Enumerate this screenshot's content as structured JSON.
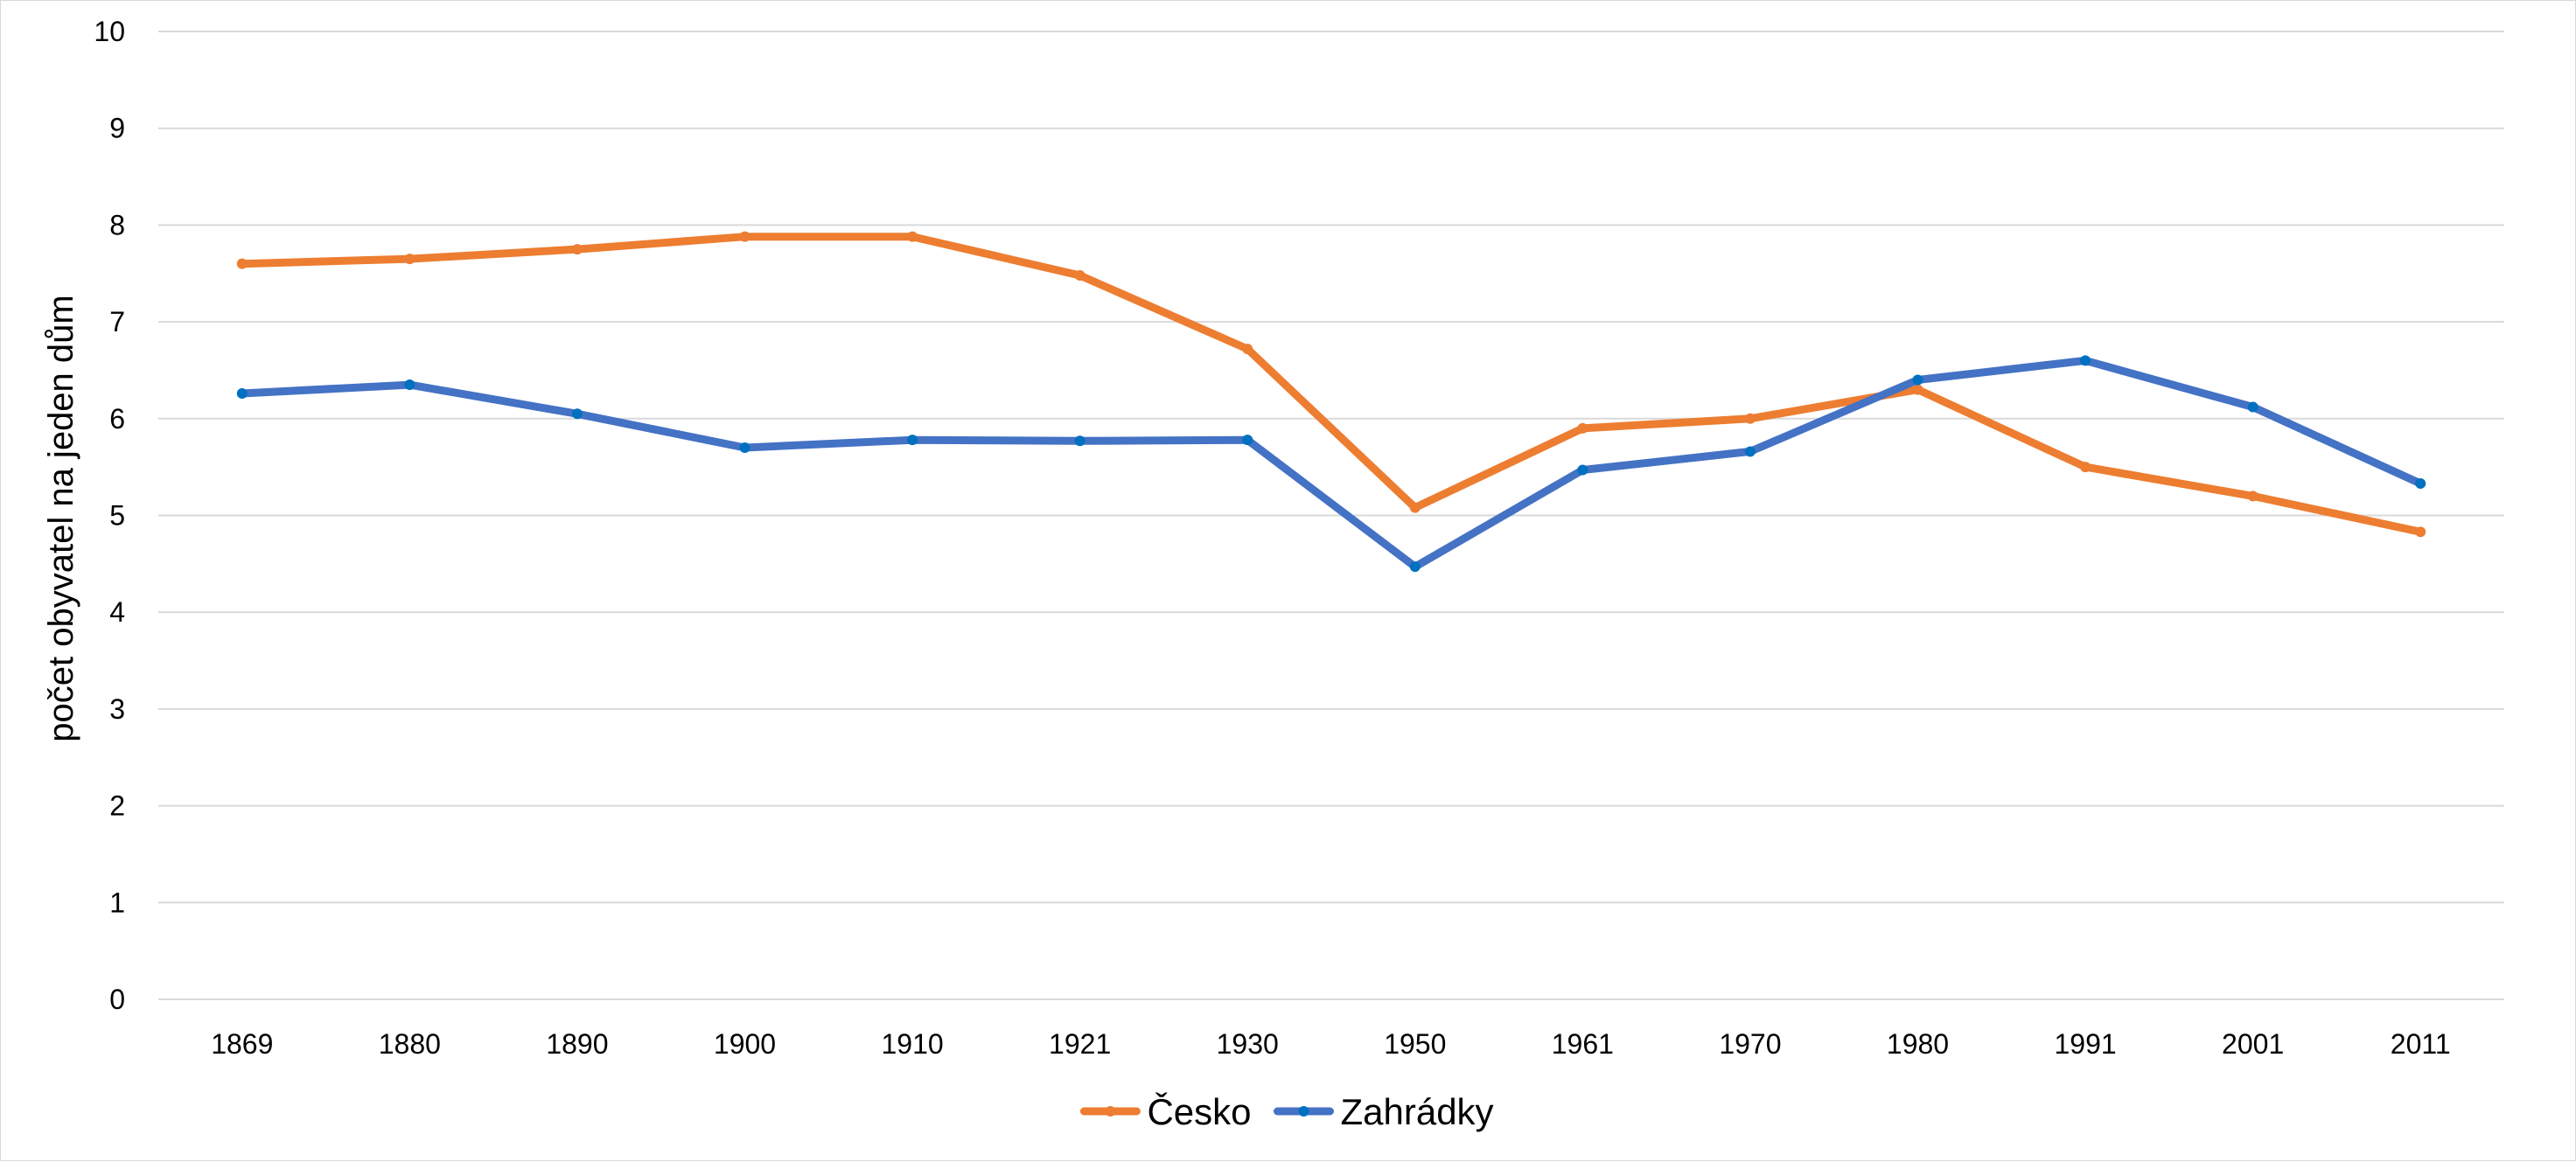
{
  "chart_data": {
    "type": "line",
    "title": "",
    "xlabel": "",
    "ylabel": "počet obyvatel na jeden dům",
    "categories": [
      "1869",
      "1880",
      "1890",
      "1900",
      "1910",
      "1921",
      "1930",
      "1950",
      "1961",
      "1970",
      "1980",
      "1991",
      "2001",
      "2011"
    ],
    "y_ticks": [
      "0",
      "1",
      "2",
      "3",
      "4",
      "5",
      "6",
      "7",
      "8",
      "9",
      "10"
    ],
    "ylim": [
      0,
      10
    ],
    "grid": true,
    "legend_position": "bottom",
    "series": [
      {
        "name": "Česko",
        "color": "#ED7D31",
        "values": [
          7.6,
          7.65,
          7.75,
          7.88,
          7.88,
          7.48,
          6.72,
          5.08,
          5.9,
          6.0,
          6.3,
          5.5,
          5.2,
          4.83
        ]
      },
      {
        "name": "Zahrádky",
        "color": "#4472C4",
        "marker_color": "#0070C0",
        "values": [
          6.26,
          6.35,
          6.05,
          5.7,
          5.78,
          5.77,
          5.78,
          4.47,
          5.47,
          5.66,
          6.4,
          6.6,
          6.12,
          5.33
        ]
      }
    ]
  }
}
